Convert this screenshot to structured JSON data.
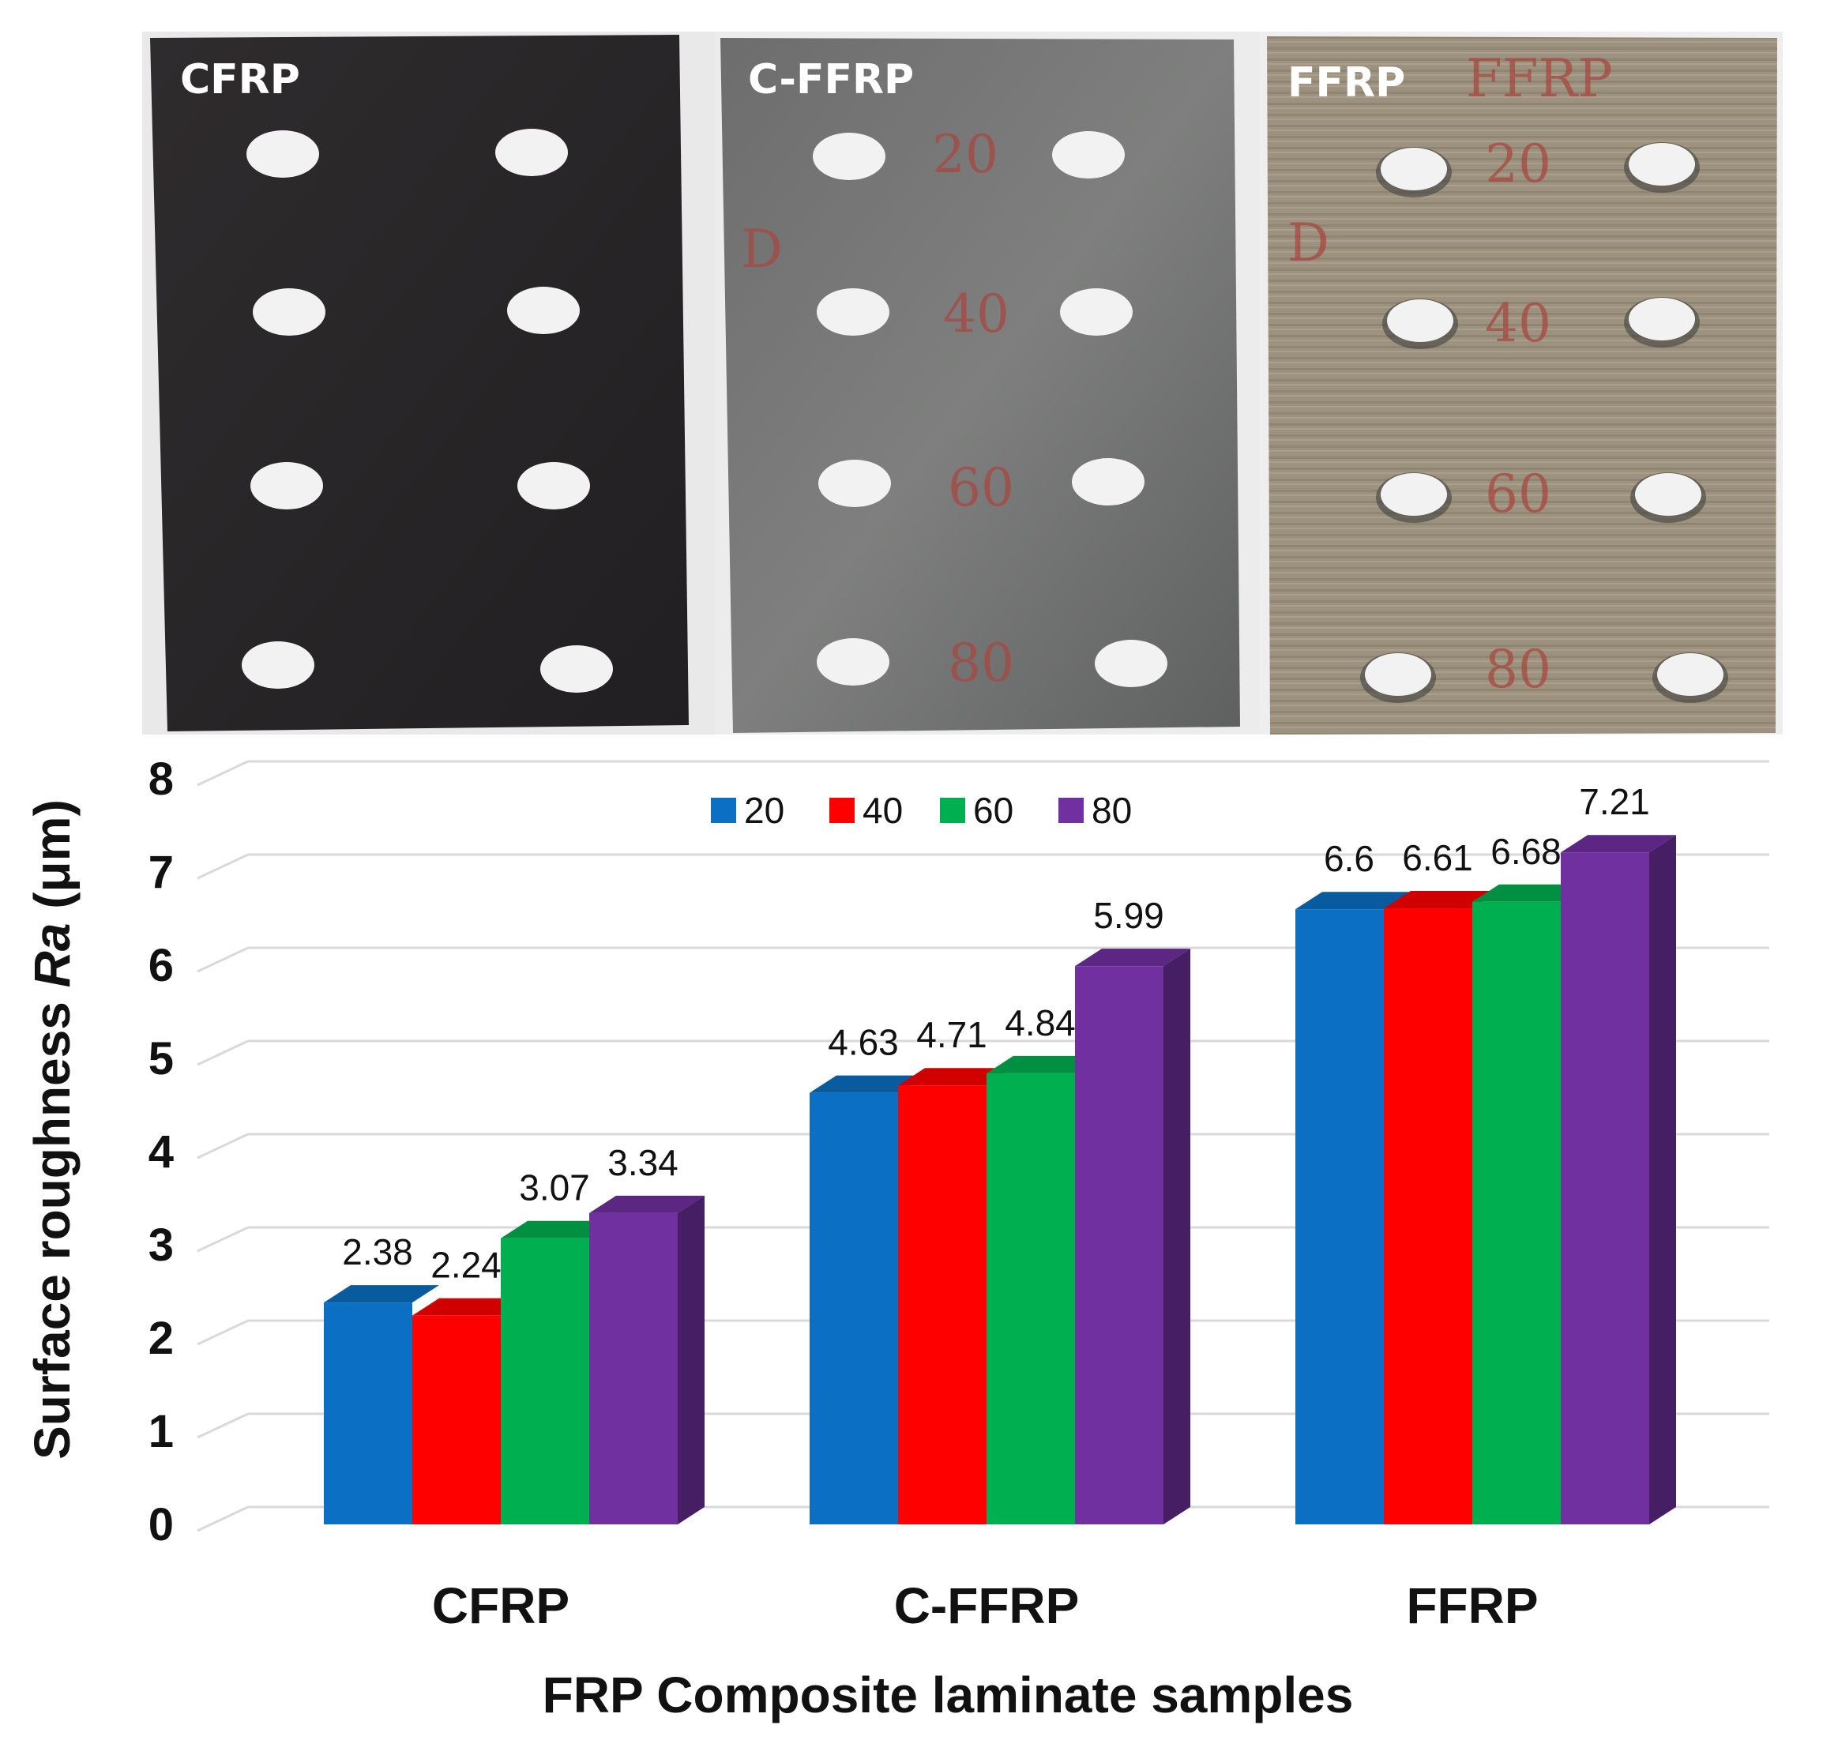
{
  "photos": [
    {
      "label": "CFRP",
      "annotations": []
    },
    {
      "label": "C-FFRP",
      "annotations": [
        "20",
        "D",
        "40",
        "60",
        "80"
      ]
    },
    {
      "label": "FFRP",
      "annotations": [
        "FFRP",
        "20",
        "D",
        "40",
        "60",
        "80"
      ]
    }
  ],
  "chart_data": {
    "type": "bar",
    "categories": [
      "CFRP",
      "C-FFRP",
      "FFRP"
    ],
    "series": [
      {
        "name": "20",
        "values": [
          2.38,
          4.63,
          6.6
        ],
        "color": "#0b6fc3"
      },
      {
        "name": "40",
        "values": [
          2.24,
          4.71,
          6.61
        ],
        "color": "#ff0000"
      },
      {
        "name": "60",
        "values": [
          3.07,
          4.84,
          6.68
        ],
        "color": "#00b050"
      },
      {
        "name": "80",
        "values": [
          3.34,
          5.99,
          7.21
        ],
        "color": "#7030a0"
      }
    ],
    "data_labels": [
      [
        "2.38",
        "4.63",
        "6.6"
      ],
      [
        "2.24",
        "4.71",
        "6.61"
      ],
      [
        "3.07",
        "4.84",
        "6.68"
      ],
      [
        "3.34",
        "5.99",
        "7.21"
      ]
    ],
    "xlabel": "FRP Composite laminate samples",
    "ylabel_parts": {
      "before": "Surface roughness ",
      "italic": "Ra",
      "after": " (μm)"
    },
    "ylim": [
      0,
      8
    ],
    "yticks": [
      "0",
      "1",
      "2",
      "3",
      "4",
      "5",
      "6",
      "7",
      "8"
    ],
    "grid": true,
    "legend_position": "top-center"
  }
}
